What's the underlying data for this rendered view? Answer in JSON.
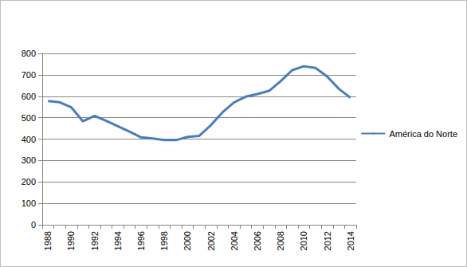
{
  "chart_data": {
    "type": "line",
    "categories": [
      "1988",
      null,
      "1990",
      null,
      "1992",
      null,
      "1994",
      null,
      "1996",
      null,
      "1998",
      null,
      "2000",
      null,
      "2002",
      null,
      "2004",
      null,
      "2006",
      null,
      "2008",
      null,
      "2010",
      null,
      "2012",
      null,
      "2014"
    ],
    "series": [
      {
        "name": "América do Norte",
        "color": "#4a7ebb",
        "values": [
          578,
          572,
          548,
          483,
          508,
          485,
          460,
          435,
          408,
          403,
          395,
          395,
          410,
          415,
          465,
          525,
          572,
          598,
          610,
          625,
          670,
          722,
          740,
          732,
          692,
          635,
          593
        ]
      }
    ],
    "ylim": [
      0,
      800
    ],
    "yticks": [
      0,
      100,
      200,
      300,
      400,
      500,
      600,
      700,
      800
    ],
    "grid": true,
    "legend": "right"
  }
}
